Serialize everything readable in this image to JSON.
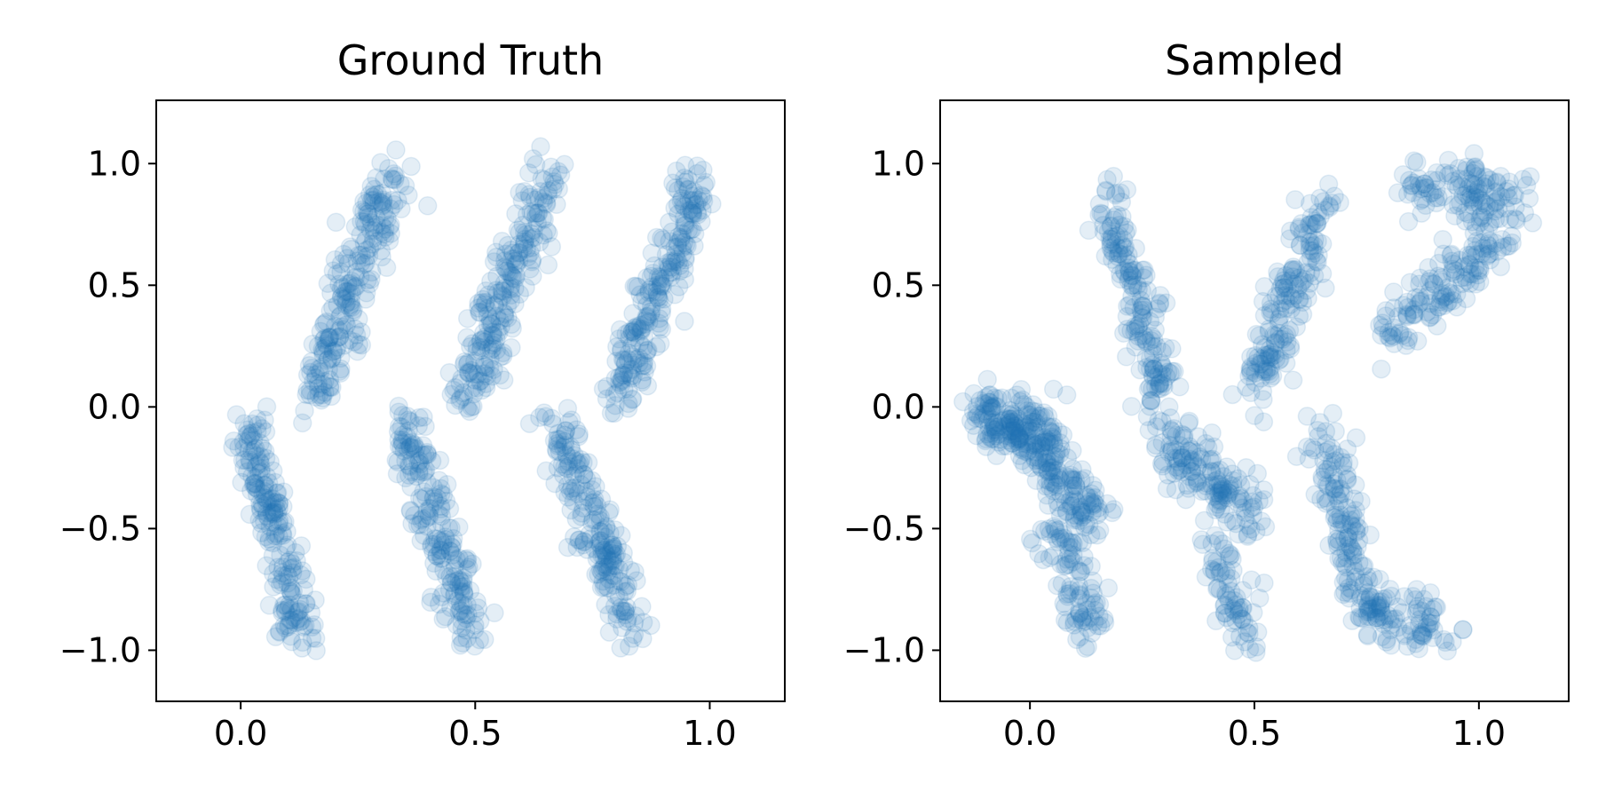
{
  "figure": {
    "marker_color": "#1f77b4",
    "marker_alpha": 0.12
  },
  "chart_data": [
    {
      "type": "scatter",
      "title": "Ground Truth",
      "xlabel": "",
      "ylabel": "",
      "xlim": [
        -0.18,
        1.16
      ],
      "ylim": [
        -1.21,
        1.26
      ],
      "xticks": [
        0.0,
        0.5,
        1.0
      ],
      "xtick_labels": [
        "0.0",
        "0.5",
        "1.0"
      ],
      "yticks": [
        -1.0,
        -0.5,
        0.0,
        0.5,
        1.0
      ],
      "ytick_labels": [
        "−1.0",
        "−0.5",
        "0.0",
        "0.5",
        "1.0"
      ],
      "grid": false,
      "legend": "none",
      "series": [
        {
          "color": "#1f77b4",
          "clusters": [
            {
              "x": [
                0.16,
                0.32
              ],
              "y": [
                0.05,
                0.95
              ],
              "n": 220
            },
            {
              "x": [
                0.48,
                0.66
              ],
              "y": [
                0.05,
                0.95
              ],
              "n": 220
            },
            {
              "x": [
                0.8,
                0.98
              ],
              "y": [
                0.05,
                0.95
              ],
              "n": 220
            },
            {
              "x": [
                0.01,
                0.13
              ],
              "y": [
                -0.05,
                -0.95
              ],
              "n": 200
            },
            {
              "x": [
                0.35,
                0.49
              ],
              "y": [
                -0.05,
                -0.95
              ],
              "n": 200
            },
            {
              "x": [
                0.67,
                0.84
              ],
              "y": [
                -0.05,
                -0.95
              ],
              "n": 200
            }
          ]
        }
      ]
    },
    {
      "type": "scatter",
      "title": "Sampled",
      "xlabel": "",
      "ylabel": "",
      "xlim": [
        -0.2,
        1.2
      ],
      "ylim": [
        -1.21,
        1.26
      ],
      "xticks": [
        0.0,
        0.5,
        1.0
      ],
      "xtick_labels": [
        "0.0",
        "0.5",
        "1.0"
      ],
      "yticks": [
        -1.0,
        -0.5,
        0.0,
        0.5,
        1.0
      ],
      "ytick_labels": [
        "−1.0",
        "−0.5",
        "0.0",
        "0.5",
        "1.0"
      ],
      "grid": false,
      "legend": "none",
      "series": [
        {
          "color": "#1f77b4",
          "clusters": [
            {
              "x": [
                -0.12,
                0.05
              ],
              "y": [
                -0.02,
                -0.12
              ],
              "n": 160
            },
            {
              "x": [
                -0.02,
                0.15
              ],
              "y": [
                -0.1,
                -0.45
              ],
              "n": 140
            },
            {
              "x": [
                0.05,
                0.14
              ],
              "y": [
                -0.45,
                -0.95
              ],
              "n": 100
            },
            {
              "x": [
                0.18,
                0.3
              ],
              "y": [
                0.85,
                0.0
              ],
              "n": 170
            },
            {
              "x": [
                0.3,
                0.5
              ],
              "y": [
                -0.15,
                -0.45
              ],
              "n": 150
            },
            {
              "x": [
                0.42,
                0.48
              ],
              "y": [
                -0.6,
                -0.95
              ],
              "n": 70
            },
            {
              "x": [
                0.5,
                0.66
              ],
              "y": [
                0.05,
                0.85
              ],
              "n": 170
            },
            {
              "x": [
                0.65,
                0.76
              ],
              "y": [
                -0.1,
                -0.9
              ],
              "n": 150
            },
            {
              "x": [
                0.75,
                0.92
              ],
              "y": [
                -0.85,
                -0.9
              ],
              "n": 80
            },
            {
              "x": [
                0.85,
                1.1
              ],
              "y": [
                0.9,
                0.85
              ],
              "n": 120
            },
            {
              "x": [
                0.8,
                1.05
              ],
              "y": [
                0.3,
                0.7
              ],
              "n": 140
            }
          ]
        }
      ]
    }
  ]
}
